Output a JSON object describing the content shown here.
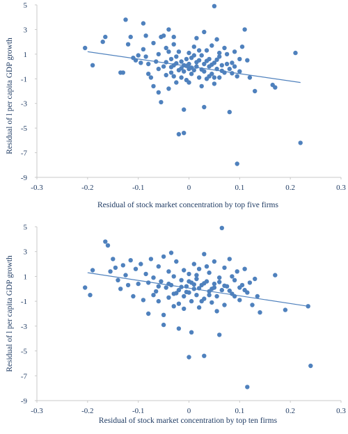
{
  "chart_data": [
    {
      "type": "scatter",
      "title": "",
      "xlabel": "Residual of stock market concentration by top five firms",
      "ylabel": "Residual of l per capita GDP growth",
      "xlim": [
        -0.3,
        0.3
      ],
      "ylim": [
        -9,
        5
      ],
      "xticks": [
        "-0.3",
        "-0.2",
        "-0.1",
        "0",
        "0.1",
        "0.2",
        "0.3"
      ],
      "yticks": [
        "5",
        "3",
        "1",
        "-1",
        "-3",
        "-5",
        "-7",
        "-9"
      ],
      "grid": false,
      "legend": "none",
      "color": "#4f81bd",
      "trendline": {
        "x": [
          -0.2,
          0.22
        ],
        "y": [
          1.2,
          -1.3
        ]
      },
      "points": [
        [
          -0.205,
          1.5
        ],
        [
          -0.19,
          0.1
        ],
        [
          -0.17,
          2.0
        ],
        [
          -0.165,
          2.4
        ],
        [
          -0.135,
          -0.5
        ],
        [
          -0.13,
          -0.5
        ],
        [
          -0.125,
          3.8
        ],
        [
          -0.12,
          1.8
        ],
        [
          -0.115,
          2.4
        ],
        [
          -0.11,
          0.7
        ],
        [
          -0.105,
          0.5
        ],
        [
          -0.1,
          0.9
        ],
        [
          -0.095,
          0.3
        ],
        [
          -0.09,
          3.5
        ],
        [
          -0.085,
          0.8
        ],
        [
          -0.085,
          2.5
        ],
        [
          -0.08,
          -0.6
        ],
        [
          -0.075,
          -0.9
        ],
        [
          -0.07,
          1.9
        ],
        [
          -0.07,
          -1.6
        ],
        [
          -0.065,
          0.4
        ],
        [
          -0.06,
          1.0
        ],
        [
          -0.06,
          -0.2
        ],
        [
          -0.055,
          2.4
        ],
        [
          -0.05,
          0.0
        ],
        [
          -0.05,
          2.5
        ],
        [
          -0.045,
          -0.7
        ],
        [
          -0.045,
          1.5
        ],
        [
          -0.04,
          3.0
        ],
        [
          -0.04,
          -1.8
        ],
        [
          -0.035,
          0.6
        ],
        [
          -0.035,
          -0.5
        ],
        [
          -0.03,
          2.4
        ],
        [
          -0.03,
          1.8
        ],
        [
          -0.03,
          0.1
        ],
        [
          -0.025,
          -1.3
        ],
        [
          -0.025,
          0.8
        ],
        [
          -0.02,
          -0.3
        ],
        [
          -0.02,
          1.2
        ],
        [
          -0.015,
          0.4
        ],
        [
          -0.015,
          -0.9
        ],
        [
          -0.01,
          0.1
        ],
        [
          -0.01,
          -0.4
        ],
        [
          -0.005,
          0.6
        ],
        [
          -0.005,
          -1.1
        ],
        [
          0.0,
          0.2
        ],
        [
          0.0,
          -0.2
        ],
        [
          0.0,
          1.1
        ],
        [
          0.005,
          0.7
        ],
        [
          0.005,
          -0.6
        ],
        [
          0.01,
          1.6
        ],
        [
          0.01,
          -0.3
        ],
        [
          0.015,
          2.3
        ],
        [
          0.015,
          0.0
        ],
        [
          0.02,
          -0.9
        ],
        [
          0.02,
          0.5
        ],
        [
          0.025,
          -1.6
        ],
        [
          0.025,
          0.9
        ],
        [
          0.03,
          0.2
        ],
        [
          0.03,
          -0.4
        ],
        [
          0.035,
          1.3
        ],
        [
          0.035,
          -1.0
        ],
        [
          0.04,
          0.0
        ],
        [
          0.04,
          0.6
        ],
        [
          0.045,
          -0.6
        ],
        [
          0.045,
          1.7
        ],
        [
          0.05,
          0.3
        ],
        [
          0.05,
          -1.4
        ],
        [
          0.055,
          2.2
        ],
        [
          0.055,
          -0.2
        ],
        [
          0.06,
          0.8
        ],
        [
          0.06,
          -0.9
        ],
        [
          0.065,
          0.1
        ],
        [
          0.07,
          1.5
        ],
        [
          0.07,
          -0.5
        ],
        [
          0.075,
          1.0
        ],
        [
          0.08,
          -0.2
        ],
        [
          0.085,
          0.3
        ],
        [
          0.09,
          1.2
        ],
        [
          0.095,
          -0.8
        ],
        [
          0.1,
          0.6
        ],
        [
          0.105,
          1.6
        ],
        [
          0.11,
          3.0
        ],
        [
          0.115,
          0.5
        ],
        [
          0.12,
          -0.9
        ],
        [
          0.13,
          -2.0
        ],
        [
          0.165,
          -1.5
        ],
        [
          0.17,
          -1.7
        ],
        [
          -0.06,
          -2.1
        ],
        [
          -0.055,
          -2.9
        ],
        [
          -0.01,
          -3.5
        ],
        [
          0.03,
          -3.3
        ],
        [
          0.08,
          -3.7
        ],
        [
          0.05,
          4.9
        ],
        [
          -0.02,
          -5.5
        ],
        [
          -0.01,
          -5.4
        ],
        [
          0.21,
          1.1
        ],
        [
          0.22,
          -6.2
        ],
        [
          0.095,
          -7.9
        ],
        [
          0.005,
          -0.1
        ],
        [
          0.015,
          0.35
        ],
        [
          -0.005,
          0.05
        ],
        [
          0.025,
          -0.25
        ],
        [
          0.035,
          0.45
        ],
        [
          -0.015,
          -0.15
        ],
        [
          0.045,
          0.15
        ],
        [
          0.055,
          0.55
        ],
        [
          0.065,
          -0.35
        ],
        [
          -0.025,
          0.25
        ],
        [
          -0.035,
          -0.05
        ],
        [
          0.075,
          0.2
        ],
        [
          0.085,
          -0.55
        ],
        [
          -0.045,
          0.35
        ],
        [
          0.01,
          0.9
        ],
        [
          0.02,
          1.3
        ],
        [
          0.04,
          -0.8
        ],
        [
          -0.03,
          -0.8
        ],
        [
          0.06,
          1.1
        ],
        [
          0.09,
          0.0
        ],
        [
          0.1,
          -0.4
        ],
        [
          -0.08,
          0.2
        ],
        [
          -0.09,
          1.4
        ],
        [
          0.0,
          -1.3
        ],
        [
          0.03,
          2.8
        ],
        [
          -0.04,
          1.2
        ],
        [
          0.05,
          -0.9
        ]
      ]
    },
    {
      "type": "scatter",
      "title": "",
      "xlabel": "Residual of stock market concentration by top ten firms",
      "ylabel": "Residual of l per capita GDP growth",
      "xlim": [
        -0.3,
        0.3
      ],
      "ylim": [
        -9,
        5
      ],
      "xticks": [
        "-0.3",
        "-0.2",
        "-0.1",
        "0",
        "0.1",
        "0.2",
        "0.3"
      ],
      "yticks": [
        "5",
        "3",
        "1",
        "-1",
        "-3",
        "-5",
        "-7",
        "-9"
      ],
      "grid": false,
      "legend": "none",
      "color": "#4f81bd",
      "trendline": {
        "x": [
          -0.2,
          0.235
        ],
        "y": [
          1.3,
          -1.4
        ]
      },
      "points": [
        [
          -0.205,
          0.1
        ],
        [
          -0.195,
          -0.5
        ],
        [
          -0.19,
          1.5
        ],
        [
          -0.165,
          3.8
        ],
        [
          -0.16,
          3.5
        ],
        [
          -0.155,
          1.4
        ],
        [
          -0.15,
          2.4
        ],
        [
          -0.145,
          1.7
        ],
        [
          -0.14,
          0.7
        ],
        [
          -0.135,
          0.0
        ],
        [
          -0.13,
          1.9
        ],
        [
          -0.125,
          1.1
        ],
        [
          -0.12,
          0.3
        ],
        [
          -0.115,
          2.3
        ],
        [
          -0.11,
          -0.6
        ],
        [
          -0.105,
          1.6
        ],
        [
          -0.1,
          0.4
        ],
        [
          -0.095,
          2.0
        ],
        [
          -0.09,
          -0.9
        ],
        [
          -0.085,
          1.2
        ],
        [
          -0.08,
          0.5
        ],
        [
          -0.08,
          -2.0
        ],
        [
          -0.075,
          2.4
        ],
        [
          -0.07,
          0.9
        ],
        [
          -0.065,
          -0.2
        ],
        [
          -0.06,
          1.8
        ],
        [
          -0.06,
          -1.0
        ],
        [
          -0.055,
          0.6
        ],
        [
          -0.05,
          2.6
        ],
        [
          -0.05,
          -2.1
        ],
        [
          -0.045,
          0.1
        ],
        [
          -0.04,
          1.4
        ],
        [
          -0.04,
          -0.7
        ],
        [
          -0.035,
          2.9
        ],
        [
          -0.035,
          0.3
        ],
        [
          -0.03,
          -0.4
        ],
        [
          -0.03,
          1.0
        ],
        [
          -0.025,
          2.2
        ],
        [
          -0.02,
          -0.1
        ],
        [
          -0.02,
          -1.2
        ],
        [
          -0.015,
          0.7
        ],
        [
          -0.01,
          1.5
        ],
        [
          -0.01,
          -0.6
        ],
        [
          -0.005,
          0.2
        ],
        [
          0.0,
          -0.3
        ],
        [
          0.0,
          1.2
        ],
        [
          0.005,
          0.5
        ],
        [
          0.005,
          -1.0
        ],
        [
          0.01,
          0.0
        ],
        [
          0.01,
          2.0
        ],
        [
          0.015,
          -0.5
        ],
        [
          0.015,
          0.8
        ],
        [
          0.02,
          1.6
        ],
        [
          0.02,
          -1.5
        ],
        [
          0.025,
          0.3
        ],
        [
          0.03,
          -0.8
        ],
        [
          0.03,
          2.8
        ],
        [
          0.035,
          0.6
        ],
        [
          0.04,
          -0.2
        ],
        [
          0.04,
          1.3
        ],
        [
          0.045,
          -1.1
        ],
        [
          0.05,
          0.4
        ],
        [
          0.05,
          2.2
        ],
        [
          0.055,
          -0.6
        ],
        [
          0.06,
          0.9
        ],
        [
          0.065,
          -0.1
        ],
        [
          0.07,
          1.7
        ],
        [
          0.07,
          -1.3
        ],
        [
          0.075,
          0.2
        ],
        [
          0.08,
          2.4
        ],
        [
          0.085,
          -0.4
        ],
        [
          0.09,
          0.7
        ],
        [
          0.095,
          1.4
        ],
        [
          0.1,
          -0.9
        ],
        [
          0.105,
          0.3
        ],
        [
          0.11,
          1.6
        ],
        [
          0.115,
          -0.3
        ],
        [
          0.12,
          0.5
        ],
        [
          0.125,
          -1.3
        ],
        [
          0.13,
          0.8
        ],
        [
          0.135,
          -0.6
        ],
        [
          0.14,
          -1.9
        ],
        [
          0.17,
          1.1
        ],
        [
          0.19,
          -1.7
        ],
        [
          -0.05,
          -2.9
        ],
        [
          -0.02,
          -3.2
        ],
        [
          0.005,
          -3.5
        ],
        [
          0.06,
          -3.7
        ],
        [
          0.065,
          4.9
        ],
        [
          0.0,
          -5.5
        ],
        [
          0.03,
          -5.4
        ],
        [
          0.24,
          -6.2
        ],
        [
          0.115,
          -7.9
        ],
        [
          0.235,
          -1.4
        ],
        [
          0.01,
          0.35
        ],
        [
          0.02,
          0.05
        ],
        [
          -0.005,
          -0.25
        ],
        [
          0.03,
          0.45
        ],
        [
          0.04,
          -0.5
        ],
        [
          -0.015,
          0.15
        ],
        [
          0.05,
          0.1
        ],
        [
          0.06,
          0.55
        ],
        [
          -0.025,
          -0.35
        ],
        [
          0.07,
          0.25
        ],
        [
          0.08,
          -0.15
        ],
        [
          -0.04,
          0.4
        ],
        [
          0.09,
          -0.6
        ],
        [
          0.1,
          0.1
        ],
        [
          -0.06,
          0.2
        ],
        [
          0.015,
          1.1
        ],
        [
          0.025,
          -1.0
        ],
        [
          0.035,
          1.8
        ],
        [
          -0.01,
          -1.6
        ],
        [
          0.045,
          0.0
        ],
        [
          -0.07,
          -0.5
        ],
        [
          0.055,
          -1.8
        ],
        [
          0.0,
          0.6
        ],
        [
          0.085,
          1.0
        ],
        [
          -0.03,
          -1.4
        ],
        [
          0.11,
          -0.1
        ]
      ]
    }
  ]
}
